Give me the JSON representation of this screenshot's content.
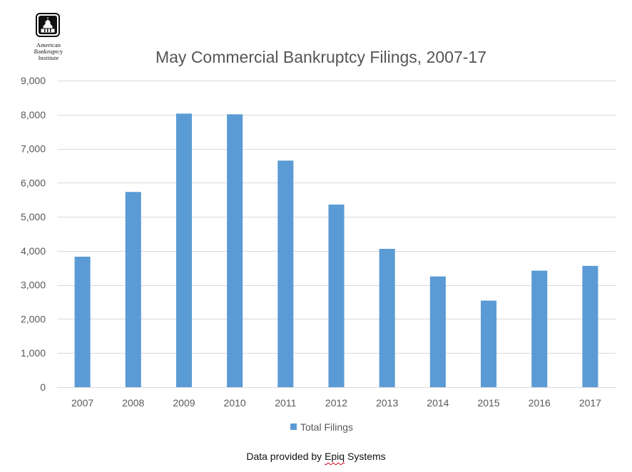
{
  "logo": {
    "lines": [
      "American",
      "Bankruptcy",
      "Institute"
    ],
    "icon": "capitol-dome-icon"
  },
  "chart_data": {
    "type": "bar",
    "title": "May Commercial Bankruptcy Filings, 2007-17",
    "xlabel": "",
    "ylabel": "",
    "categories": [
      "2007",
      "2008",
      "2009",
      "2010",
      "2011",
      "2012",
      "2013",
      "2014",
      "2015",
      "2016",
      "2017"
    ],
    "series": [
      {
        "name": "Total Filings",
        "color": "#5b9bd5",
        "values": [
          3830,
          5730,
          8030,
          8010,
          6650,
          5360,
          4060,
          3250,
          2540,
          3420,
          3560
        ]
      }
    ],
    "ylim": [
      0,
      9000
    ],
    "yticks": [
      "0",
      "1,000",
      "2,000",
      "3,000",
      "4,000",
      "5,000",
      "6,000",
      "7,000",
      "8,000",
      "9,000"
    ],
    "ytick_values": [
      0,
      1000,
      2000,
      3000,
      4000,
      5000,
      6000,
      7000,
      8000,
      9000
    ],
    "grid": true,
    "gridline_color": "#d9d9d9",
    "legend_position": "bottom"
  },
  "footer": {
    "prefix": "Data provided by ",
    "provider": "Epiq",
    "suffix": " Systems"
  }
}
